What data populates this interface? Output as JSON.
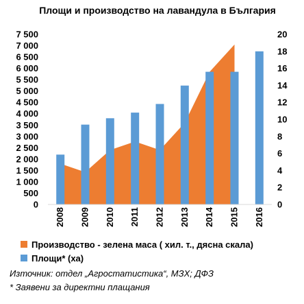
{
  "chart_data": {
    "type": "bar",
    "title": "Площи и производство на лавандула в България",
    "categories": [
      "2008",
      "2009",
      "2010",
      "2011",
      "2012",
      "2013",
      "2014",
      "2015",
      "2016"
    ],
    "left_axis": {
      "ticks": [
        "0",
        "500",
        "1 000",
        "1 500",
        "2 000",
        "2 500",
        "3 000",
        "3 500",
        "4 000",
        "4 500",
        "5 000",
        "5 500",
        "6 000",
        "6 500",
        "7 000",
        "7 500"
      ],
      "min": 0,
      "max": 7500
    },
    "right_axis": {
      "ticks": [
        "0",
        "2",
        "4",
        "6",
        "8",
        "10",
        "12",
        "14",
        "16",
        "18",
        "20"
      ],
      "min": 0,
      "max": 20
    },
    "series": [
      {
        "name": "Площи* (ха)",
        "type": "bar",
        "axis": "left",
        "color": "#5b9bd5",
        "values": [
          2200,
          3520,
          3800,
          4050,
          4430,
          5240,
          5850,
          5850,
          6750
        ]
      },
      {
        "name": "Производство - зелена маса ( хил. т., дясна скала)",
        "type": "area",
        "axis": "right",
        "color": "#ed7d31",
        "values": [
          4.8,
          3.8,
          6.4,
          7.4,
          6.4,
          9.6,
          15.6,
          18.8,
          null
        ]
      }
    ],
    "legend_position": "bottom",
    "grid": false
  },
  "notes": {
    "source": "Източник: отдел „Агростатистика“, МЗХ; ДФЗ",
    "footnote": "* Заявени за директни плащания"
  }
}
